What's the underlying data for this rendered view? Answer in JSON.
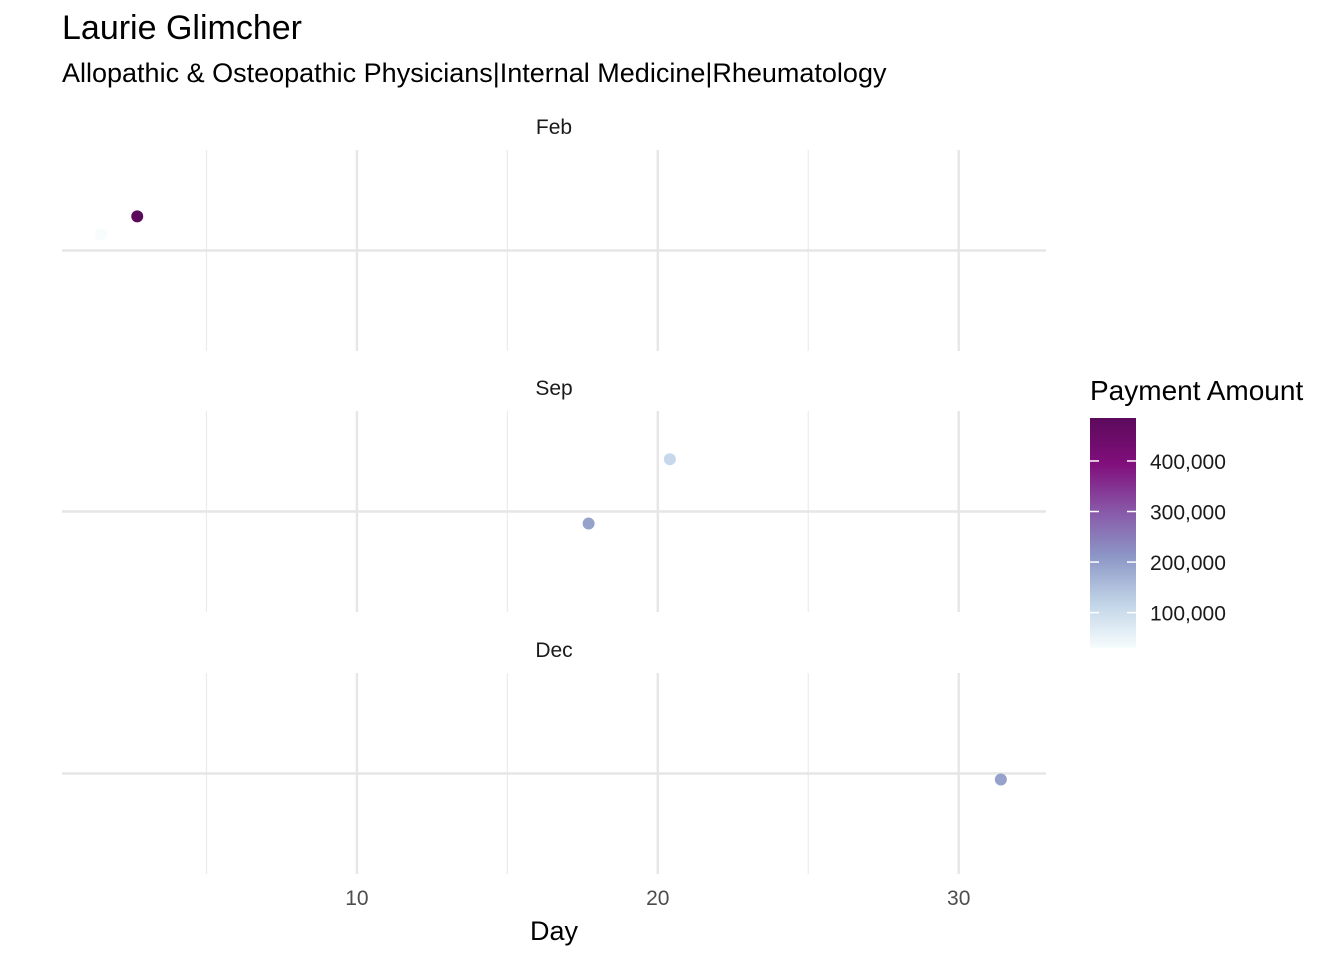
{
  "chart_data": {
    "type": "scatter",
    "title": "Laurie Glimcher",
    "subtitle": "Allopathic & Osteopathic Physicians|Internal Medicine|Rheumatology",
    "xlabel": "Day",
    "ylabel": "",
    "xlim": [
      0.2,
      32.9
    ],
    "x_ticks": [
      10,
      20,
      30
    ],
    "x_tick_labels": [
      "10",
      "20",
      "30"
    ],
    "grid": true,
    "facets": [
      {
        "label": "Feb",
        "points": [
          {
            "x": 1.5,
            "y": 0.16,
            "payment": 30000
          },
          {
            "x": 2.7,
            "y": 0.34,
            "payment": 485000
          }
        ]
      },
      {
        "label": "Sep",
        "points": [
          {
            "x": 20.4,
            "y": 0.52,
            "payment": 110000
          },
          {
            "x": 17.7,
            "y": -0.12,
            "payment": 195000
          }
        ]
      },
      {
        "label": "Dec",
        "points": [
          {
            "x": 31.4,
            "y": -0.06,
            "payment": 195000
          }
        ]
      }
    ],
    "legend": {
      "title": "Payment Amount",
      "position": "right",
      "range": [
        30000,
        485000
      ],
      "breaks": [
        100000,
        200000,
        300000,
        400000
      ],
      "labels": [
        "100,000",
        "200,000",
        "300,000",
        "400,000"
      ],
      "colors": [
        "#f7fcfd",
        "#bfd3e6",
        "#8c96c6",
        "#8856a7",
        "#810f7c",
        "#5c0a5c"
      ]
    }
  }
}
